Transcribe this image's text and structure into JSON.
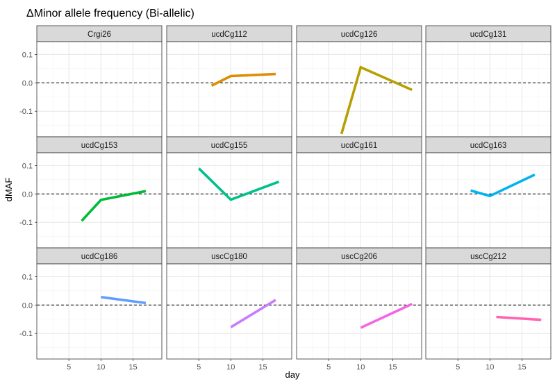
{
  "chart_data": {
    "type": "line",
    "title": "ΔMinor allele frequency (Bi-allelic)",
    "xlabel": "day",
    "ylabel": "dMAF",
    "xlim": [
      0,
      19.5
    ],
    "ylim": [
      -0.19,
      0.145
    ],
    "x_ticks": [
      5,
      10,
      15
    ],
    "y_ticks": [
      0.1,
      0.0,
      -0.1
    ],
    "y_tick_labels": [
      "0.1",
      "0.0",
      "-0.1"
    ],
    "reference_line": 0,
    "grid": true,
    "legend": "none",
    "facet_layout": {
      "ncol": 4,
      "nrow": 3
    },
    "panels": [
      {
        "label": "Crgi26",
        "color": "#F8766D",
        "x": [],
        "y": []
      },
      {
        "label": "ucdCg112",
        "color": "#DE8C00",
        "x": [
          7,
          10,
          17
        ],
        "y": [
          -0.01,
          0.024,
          0.031
        ]
      },
      {
        "label": "ucdCg126",
        "color": "#B79F00",
        "x": [
          7,
          10,
          18
        ],
        "y": [
          -0.18,
          0.055,
          -0.025
        ]
      },
      {
        "label": "ucdCg131",
        "color": "#7CAE00",
        "x": [],
        "y": []
      },
      {
        "label": "ucdCg153",
        "color": "#00BA38",
        "x": [
          7,
          10,
          17
        ],
        "y": [
          -0.095,
          -0.021,
          0.01
        ]
      },
      {
        "label": "ucdCg155",
        "color": "#00C08B",
        "x": [
          5,
          10,
          17.5
        ],
        "y": [
          0.09,
          -0.02,
          0.043
        ]
      },
      {
        "label": "ucdCg161",
        "color": "#00BFC4",
        "x": [],
        "y": []
      },
      {
        "label": "ucdCg163",
        "color": "#00B4F0",
        "x": [
          7,
          10,
          17
        ],
        "y": [
          0.012,
          -0.007,
          0.068
        ]
      },
      {
        "label": "ucdCg186",
        "color": "#619CFF",
        "x": [
          10,
          17
        ],
        "y": [
          0.028,
          0.007
        ]
      },
      {
        "label": "uscCg180",
        "color": "#C77CFF",
        "x": [
          10,
          17
        ],
        "y": [
          -0.078,
          0.018
        ]
      },
      {
        "label": "uscCg206",
        "color": "#F564E3",
        "x": [
          10,
          18
        ],
        "y": [
          -0.08,
          0.004
        ]
      },
      {
        "label": "uscCg212",
        "color": "#FF64B0",
        "x": [
          11,
          18
        ],
        "y": [
          -0.042,
          -0.052
        ]
      }
    ]
  }
}
